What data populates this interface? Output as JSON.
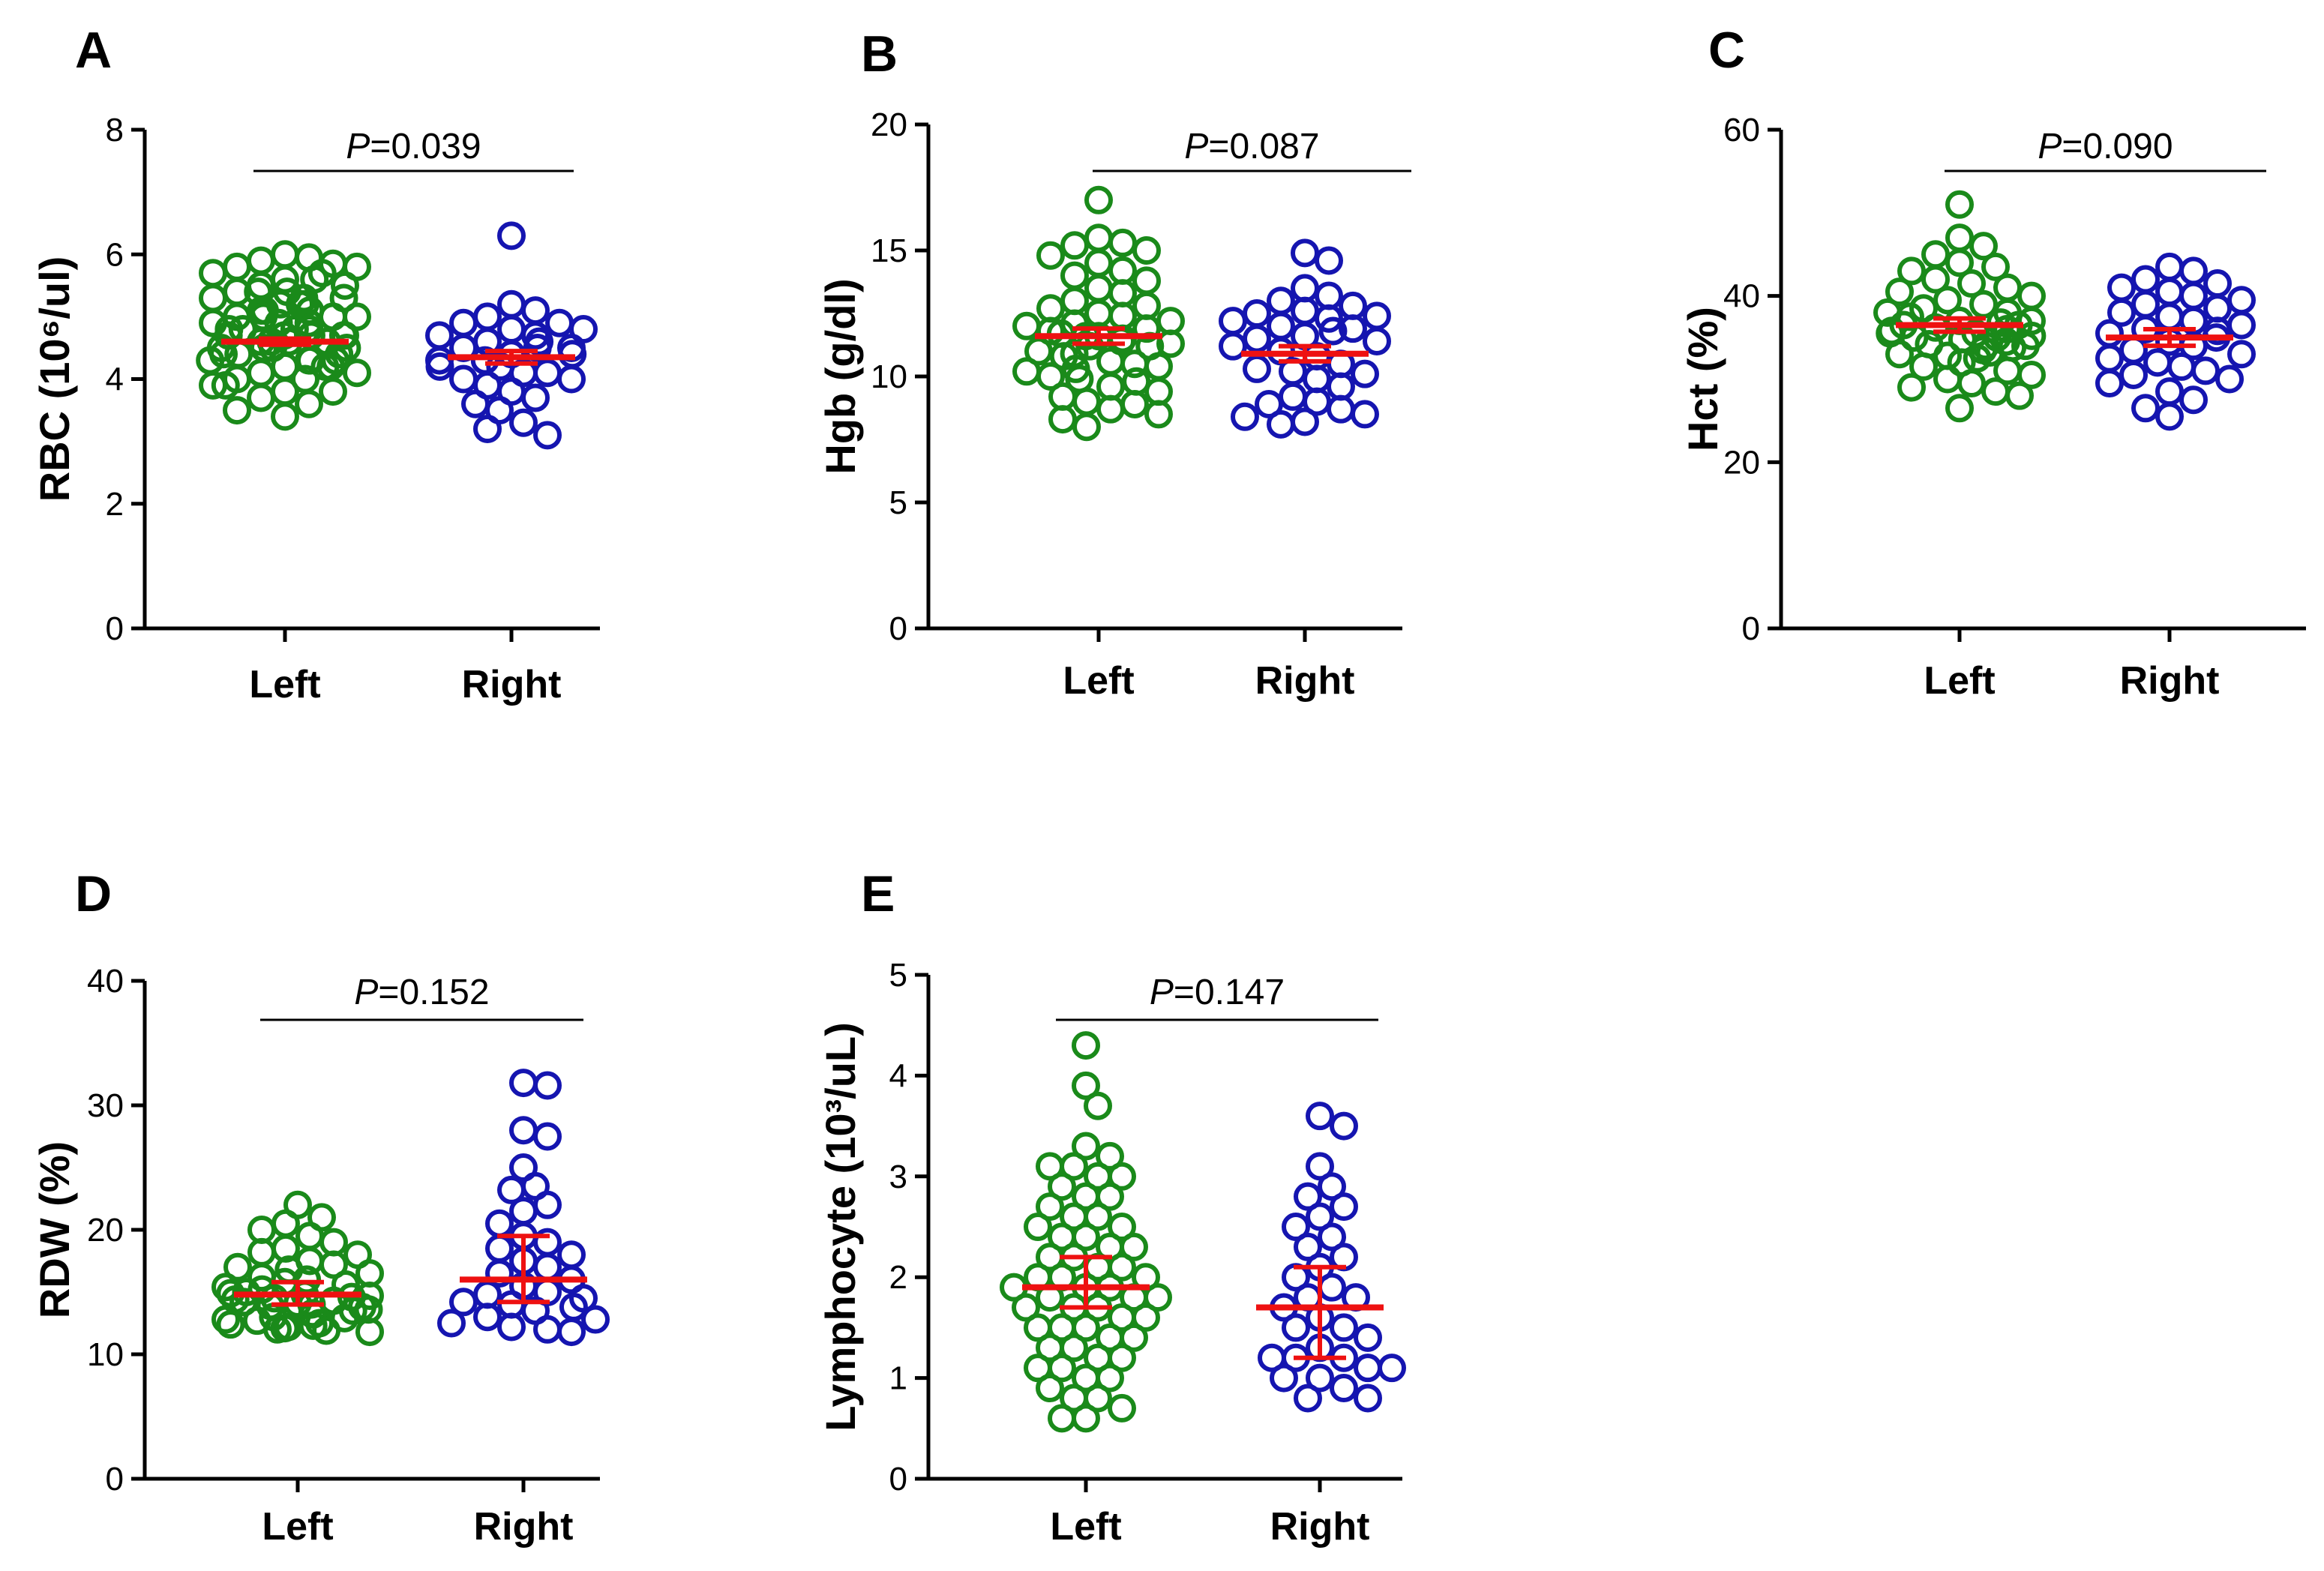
{
  "figure": {
    "group_labels": [
      "Left",
      "Right"
    ]
  },
  "chart_data": [
    {
      "panel": "A",
      "type": "scatter",
      "ylabel": "RBC (10⁶/ul)",
      "ylim": [
        0,
        8
      ],
      "yticks": [
        0,
        2,
        4,
        6,
        8
      ],
      "categories": [
        "Left",
        "Right"
      ],
      "pvalue_prefix": "P",
      "pvalue_text": "=0.039",
      "series": [
        {
          "name": "Left",
          "color": "#1a8a1a",
          "center": 4.6,
          "err_low": 4.55,
          "err_high": 4.65,
          "values": [
            6.0,
            5.95,
            5.9,
            5.85,
            5.8,
            5.8,
            5.7,
            5.7,
            5.6,
            5.6,
            5.5,
            5.5,
            5.4,
            5.4,
            5.4,
            5.3,
            5.3,
            5.3,
            5.2,
            5.2,
            5.2,
            5.1,
            5.1,
            5.1,
            5.0,
            5.0,
            5.0,
            5.0,
            4.9,
            4.9,
            4.9,
            4.8,
            4.8,
            4.8,
            4.8,
            4.7,
            4.7,
            4.7,
            4.7,
            4.7,
            4.6,
            4.6,
            4.6,
            4.6,
            4.5,
            4.5,
            4.5,
            4.5,
            4.4,
            4.4,
            4.4,
            4.3,
            4.3,
            4.3,
            4.3,
            4.2,
            4.2,
            4.2,
            4.1,
            4.1,
            4.0,
            4.0,
            3.9,
            3.9,
            3.8,
            3.8,
            3.7,
            3.6,
            3.5,
            3.4
          ]
        },
        {
          "name": "Right",
          "color": "#1515b0",
          "center": 4.35,
          "err_low": 4.25,
          "err_high": 4.45,
          "values": [
            6.3,
            5.2,
            5.1,
            5.0,
            4.9,
            4.9,
            4.8,
            4.8,
            4.7,
            4.7,
            4.6,
            4.6,
            4.5,
            4.5,
            4.5,
            4.4,
            4.4,
            4.3,
            4.3,
            4.2,
            4.2,
            4.1,
            4.1,
            4.0,
            4.0,
            3.9,
            3.8,
            3.7,
            3.6,
            3.5,
            3.3,
            3.2,
            3.1
          ]
        }
      ]
    },
    {
      "panel": "B",
      "type": "scatter",
      "ylabel": "Hgb (g/dl)",
      "ylim": [
        0,
        20
      ],
      "yticks": [
        0,
        5,
        10,
        15,
        20
      ],
      "categories": [
        "Left",
        "Right"
      ],
      "pvalue_prefix": "P",
      "pvalue_text": "=0.087",
      "series": [
        {
          "name": "Left",
          "color": "#1a8a1a",
          "center": 11.6,
          "err_low": 11.3,
          "err_high": 11.9,
          "values": [
            17.0,
            15.5,
            15.3,
            15.2,
            15.0,
            14.8,
            14.5,
            14.2,
            14.0,
            13.8,
            13.5,
            13.3,
            13.0,
            12.8,
            12.7,
            12.5,
            12.4,
            12.2,
            12.1,
            12.0,
            11.9,
            11.8,
            11.7,
            11.6,
            11.6,
            11.5,
            11.4,
            11.3,
            11.2,
            11.2,
            11.0,
            10.9,
            10.8,
            10.6,
            10.5,
            10.4,
            10.3,
            10.2,
            10.0,
            9.9,
            9.8,
            9.6,
            9.4,
            9.2,
            9.0,
            8.9,
            8.7,
            8.5,
            8.3,
            8.0
          ]
        },
        {
          "name": "Right",
          "color": "#1515b0",
          "center": 10.9,
          "err_low": 10.6,
          "err_high": 11.2,
          "values": [
            14.9,
            14.6,
            13.5,
            13.2,
            13.0,
            12.8,
            12.6,
            12.5,
            12.4,
            12.3,
            12.2,
            12.0,
            11.9,
            11.8,
            11.6,
            11.5,
            11.4,
            11.2,
            11.0,
            10.8,
            10.5,
            10.3,
            10.2,
            10.1,
            9.9,
            9.6,
            9.2,
            9.0,
            8.9,
            8.7,
            8.5,
            8.4,
            8.2,
            8.1
          ]
        }
      ]
    },
    {
      "panel": "C",
      "type": "scatter",
      "ylabel": "Hct (%)",
      "ylim": [
        0,
        60
      ],
      "yticks": [
        0,
        20,
        40,
        60
      ],
      "categories": [
        "Left",
        "Right"
      ],
      "pvalue_prefix": "P",
      "pvalue_text": "=0.090",
      "series": [
        {
          "name": "Left",
          "color": "#1a8a1a",
          "center": 36.5,
          "err_low": 35.7,
          "err_high": 37.3,
          "values": [
            51.0,
            47.0,
            46.0,
            45.0,
            44.0,
            43.5,
            43.0,
            42.0,
            41.5,
            41.0,
            40.5,
            40.0,
            39.5,
            39.0,
            38.5,
            38.0,
            38.0,
            37.5,
            37.0,
            37.0,
            36.8,
            36.5,
            36.5,
            36.2,
            36.0,
            35.8,
            35.5,
            35.5,
            35.2,
            35.0,
            35.0,
            34.8,
            34.5,
            34.2,
            34.0,
            34.0,
            33.8,
            33.5,
            33.2,
            33.0,
            32.8,
            32.5,
            32.0,
            31.5,
            31.0,
            30.5,
            30.0,
            29.5,
            29.0,
            28.5,
            28.0,
            26.5
          ]
        },
        {
          "name": "Right",
          "color": "#1515b0",
          "center": 35.0,
          "err_low": 34.0,
          "err_high": 36.0,
          "values": [
            43.5,
            43.0,
            42.0,
            41.5,
            41.0,
            40.5,
            40.0,
            39.5,
            39.0,
            38.5,
            38.0,
            37.5,
            37.0,
            36.5,
            36.0,
            35.8,
            35.5,
            35.0,
            34.5,
            34.0,
            33.5,
            33.0,
            32.5,
            32.0,
            31.5,
            31.0,
            30.5,
            30.0,
            29.5,
            28.5,
            27.5,
            26.5,
            25.5
          ]
        }
      ]
    },
    {
      "panel": "D",
      "type": "scatter",
      "ylabel": "RDW (%)",
      "ylim": [
        0,
        40
      ],
      "yticks": [
        0,
        10,
        20,
        30,
        40
      ],
      "categories": [
        "Left",
        "Right"
      ],
      "pvalue_prefix": "P",
      "pvalue_text": "=0.152",
      "series": [
        {
          "name": "Left",
          "color": "#1a8a1a",
          "center": 14.8,
          "err_low": 14.0,
          "err_high": 15.8,
          "values": [
            22.0,
            21.0,
            20.5,
            20.0,
            19.5,
            19.0,
            18.5,
            18.2,
            18.0,
            17.5,
            17.2,
            17.0,
            16.8,
            16.5,
            16.2,
            16.0,
            15.8,
            15.6,
            15.4,
            15.2,
            15.0,
            14.9,
            14.8,
            14.7,
            14.6,
            14.5,
            14.4,
            14.3,
            14.2,
            14.1,
            14.0,
            13.9,
            13.8,
            13.6,
            13.5,
            13.3,
            13.2,
            13.0,
            12.9,
            12.8,
            12.7,
            12.5,
            12.4,
            12.3,
            12.2,
            12.1,
            12.0,
            11.9,
            11.8
          ]
        },
        {
          "name": "Right",
          "color": "#1515b0",
          "center": 16.0,
          "err_low": 14.2,
          "err_high": 19.5,
          "values": [
            31.8,
            31.6,
            28.0,
            27.5,
            25.0,
            23.5,
            23.2,
            22.0,
            21.5,
            20.5,
            19.5,
            19.0,
            18.5,
            18.0,
            17.5,
            17.0,
            16.5,
            16.0,
            15.5,
            15.0,
            14.8,
            14.5,
            14.2,
            14.0,
            13.8,
            13.5,
            13.0,
            12.8,
            12.5,
            12.2,
            12.0,
            11.8
          ]
        }
      ]
    },
    {
      "panel": "E",
      "type": "scatter",
      "ylabel": "Lymphocyte (10³/uL)",
      "ylim": [
        0,
        5
      ],
      "yticks": [
        0,
        1,
        2,
        3,
        4,
        5
      ],
      "categories": [
        "Left",
        "Right"
      ],
      "pvalue_prefix": "P",
      "pvalue_text": "=0.147",
      "series": [
        {
          "name": "Left",
          "color": "#1a8a1a",
          "center": 1.9,
          "err_low": 1.7,
          "err_high": 2.2,
          "values": [
            4.3,
            3.9,
            3.7,
            3.3,
            3.2,
            3.1,
            3.1,
            3.0,
            3.0,
            2.9,
            2.8,
            2.8,
            2.7,
            2.6,
            2.6,
            2.5,
            2.5,
            2.4,
            2.4,
            2.3,
            2.3,
            2.2,
            2.2,
            2.1,
            2.1,
            2.0,
            2.0,
            2.0,
            1.9,
            1.9,
            1.9,
            1.8,
            1.8,
            1.8,
            1.7,
            1.7,
            1.7,
            1.6,
            1.6,
            1.5,
            1.5,
            1.5,
            1.4,
            1.4,
            1.3,
            1.3,
            1.2,
            1.2,
            1.1,
            1.1,
            1.0,
            1.0,
            0.9,
            0.8,
            0.8,
            0.7,
            0.6,
            0.6
          ]
        },
        {
          "name": "Right",
          "color": "#1515b0",
          "center": 1.7,
          "err_low": 1.2,
          "err_high": 2.1,
          "values": [
            3.6,
            3.5,
            3.1,
            2.9,
            2.8,
            2.7,
            2.6,
            2.5,
            2.4,
            2.3,
            2.2,
            2.1,
            2.0,
            1.9,
            1.8,
            1.8,
            1.7,
            1.6,
            1.5,
            1.5,
            1.4,
            1.3,
            1.2,
            1.2,
            1.2,
            1.1,
            1.1,
            1.0,
            1.0,
            0.9,
            0.8,
            0.8
          ]
        }
      ]
    }
  ]
}
